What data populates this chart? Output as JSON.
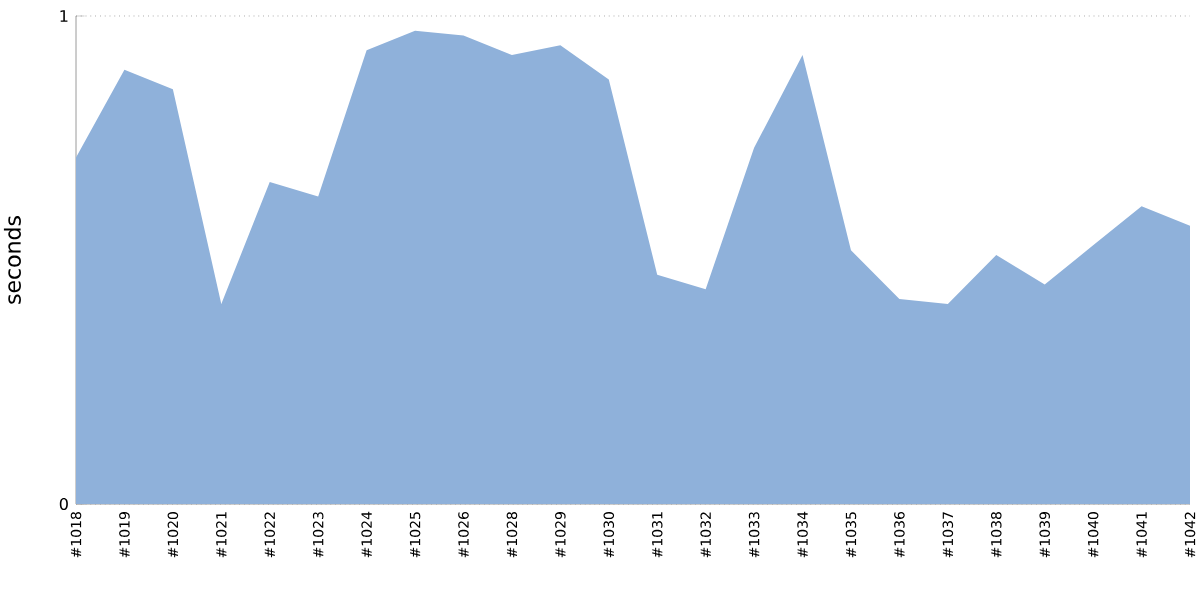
{
  "chart_data": {
    "type": "area",
    "ylabel": "seconds",
    "categories": [
      "#1018",
      "#1019",
      "#1020",
      "#1021",
      "#1022",
      "#1023",
      "#1024",
      "#1025",
      "#1026",
      "#1028",
      "#1029",
      "#1030",
      "#1031",
      "#1032",
      "#1033",
      "#1034",
      "#1035",
      "#1036",
      "#1037",
      "#1038",
      "#1039",
      "#1040",
      "#1041",
      "#1042"
    ],
    "series": [
      {
        "color": "#8fb1da",
        "values": [
          0.71,
          0.89,
          0.85,
          0.41,
          0.66,
          0.63,
          0.93,
          0.97,
          0.96,
          0.92,
          0.94,
          0.87,
          0.47,
          0.44,
          0.73,
          0.92,
          0.52,
          0.42,
          0.41,
          0.51,
          0.45,
          0.53,
          0.61,
          0.57
        ]
      }
    ],
    "ylim": [
      0,
      1
    ],
    "yticks": [
      0,
      1
    ],
    "grid": "y"
  }
}
